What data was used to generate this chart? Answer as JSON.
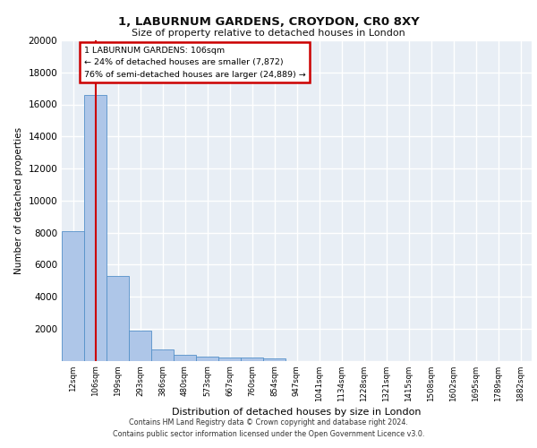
{
  "title_line1": "1, LABURNUM GARDENS, CROYDON, CR0 8XY",
  "title_line2": "Size of property relative to detached houses in London",
  "xlabel": "Distribution of detached houses by size in London",
  "ylabel": "Number of detached properties",
  "bar_labels": [
    "12sqm",
    "106sqm",
    "199sqm",
    "293sqm",
    "386sqm",
    "480sqm",
    "573sqm",
    "667sqm",
    "760sqm",
    "854sqm",
    "947sqm",
    "1041sqm",
    "1134sqm",
    "1228sqm",
    "1321sqm",
    "1415sqm",
    "1508sqm",
    "1602sqm",
    "1695sqm",
    "1789sqm",
    "1882sqm"
  ],
  "bar_values": [
    8100,
    16600,
    5300,
    1850,
    700,
    370,
    270,
    210,
    185,
    155,
    0,
    0,
    0,
    0,
    0,
    0,
    0,
    0,
    0,
    0,
    0
  ],
  "bar_color": "#aec6e8",
  "bar_edge_color": "#5591c9",
  "vline_x": 1,
  "vline_color": "#cc0000",
  "annotation_text": "1 LABURNUM GARDENS: 106sqm\n← 24% of detached houses are smaller (7,872)\n76% of semi-detached houses are larger (24,889) →",
  "annotation_box_color": "#cc0000",
  "ylim": [
    0,
    20000
  ],
  "yticks": [
    0,
    2000,
    4000,
    6000,
    8000,
    10000,
    12000,
    14000,
    16000,
    18000,
    20000
  ],
  "background_color": "#e8eef5",
  "grid_color": "#ffffff",
  "footer_line1": "Contains HM Land Registry data © Crown copyright and database right 2024.",
  "footer_line2": "Contains public sector information licensed under the Open Government Licence v3.0."
}
